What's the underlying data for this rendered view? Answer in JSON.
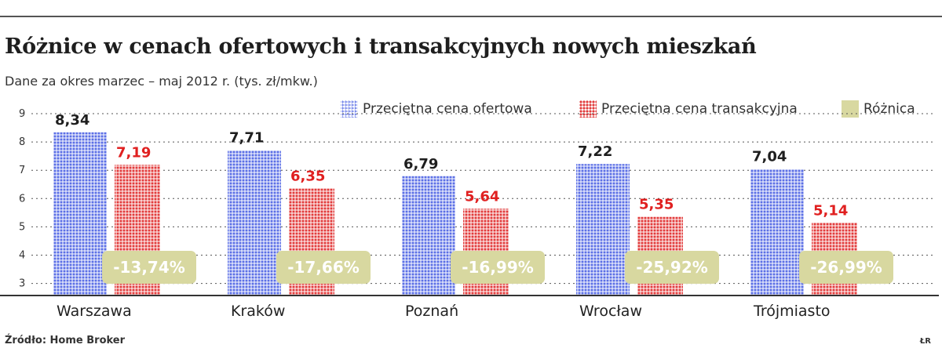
{
  "title": "Różnice w cenach ofertowych i transakcyjnych nowych mieszkań",
  "subtitle": "Dane za okres marzec – maj 2012 r. (tys. zł/mkw.)",
  "legend": {
    "offer": "Przeciętna cena ofertowa",
    "transaction": "Przeciętna cena transakcyjna",
    "difference": "Różnica"
  },
  "source": "Źródło: Home Broker",
  "credit": "ŁR",
  "colors": {
    "offer": "#5b6fe6",
    "transaction": "#e23b3b",
    "difference": "#d8d8a0",
    "axis": "#333333"
  },
  "chart_data": {
    "type": "bar",
    "title": "Różnice w cenach ofertowych i transakcyjnych nowych mieszkań",
    "subtitle": "Dane za okres marzec – maj 2012 r. (tys. zł/mkw.)",
    "categories": [
      "Warszawa",
      "Kraków",
      "Poznań",
      "Wrocław",
      "Trójmiasto"
    ],
    "series": [
      {
        "name": "Przeciętna cena ofertowa",
        "values": [
          8.34,
          7.71,
          6.79,
          7.22,
          7.04
        ],
        "labels": [
          "8,34",
          "7,71",
          "6,79",
          "7,22",
          "7,04"
        ]
      },
      {
        "name": "Przeciętna cena transakcyjna",
        "values": [
          7.19,
          6.35,
          5.64,
          5.35,
          5.14
        ],
        "labels": [
          "7,19",
          "6,35",
          "5,64",
          "5,35",
          "5,14"
        ]
      },
      {
        "name": "Różnica",
        "values": [
          -13.74,
          -17.66,
          -16.99,
          -25.92,
          -26.99
        ],
        "labels": [
          "-13,74%",
          "-17,66%",
          "-16,99%",
          "-25,92%",
          "-26,99%"
        ]
      }
    ],
    "yticks": [
      "3",
      "4",
      "5",
      "6",
      "7",
      "8",
      "9"
    ],
    "ylim": [
      2.6,
      9
    ],
    "grid": true,
    "legend_position": "top-right"
  }
}
